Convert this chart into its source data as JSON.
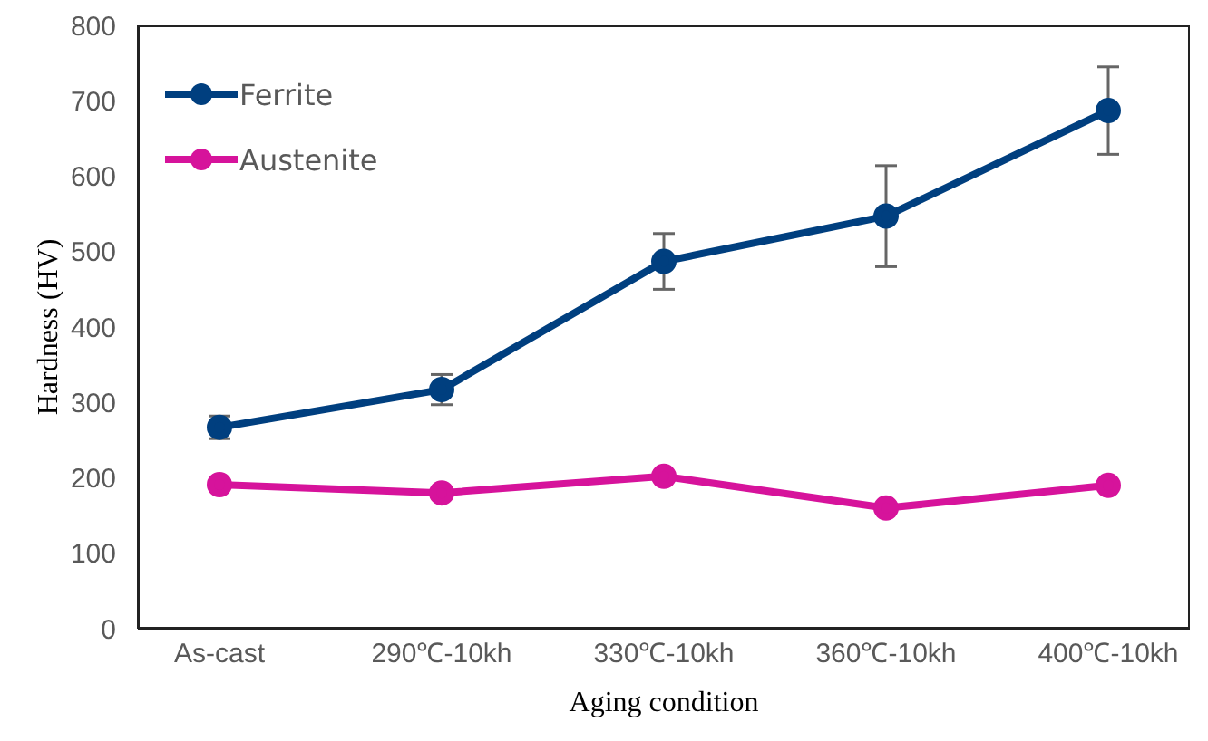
{
  "chart_data": {
    "type": "line",
    "xlabel": "Aging condition",
    "ylabel": "Hardness (HV)",
    "categories": [
      "As-cast",
      "290℃-10kh",
      "330℃-10kh",
      "360℃-10kh",
      "400℃-10kh"
    ],
    "series": [
      {
        "name": "Ferrite",
        "color": "#003f7f",
        "values": [
          267,
          317,
          487,
          547,
          687
        ],
        "errors": [
          15,
          20,
          37,
          67,
          58
        ]
      },
      {
        "name": "Austenite",
        "color": "#d6139b",
        "values": [
          191,
          180,
          202,
          160,
          190
        ]
      }
    ],
    "ylim": [
      0,
      800
    ],
    "yticks": [
      0,
      100,
      200,
      300,
      400,
      500,
      600,
      700,
      800
    ],
    "grid": false,
    "legend": "top left",
    "marker": "circle",
    "line_style": "solid"
  }
}
